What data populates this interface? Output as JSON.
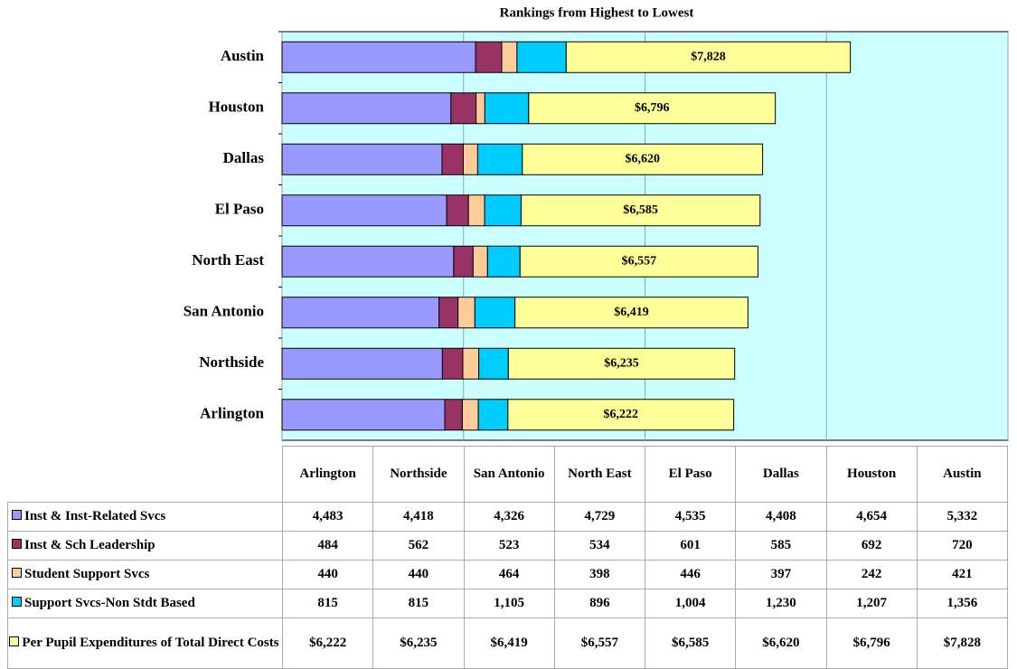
{
  "chart_data": {
    "type": "stacked_barh",
    "title": "Rankings from Highest to Lowest",
    "categories": [
      "Arlington",
      "Northside",
      "San Antonio",
      "North East",
      "El Paso",
      "Dallas",
      "Houston",
      "Austin"
    ],
    "series": [
      {
        "name": "Inst & Inst-Related Svcs",
        "color": "#9999ff",
        "values": [
          4483,
          4418,
          4326,
          4729,
          4535,
          4408,
          4654,
          5332
        ],
        "value_labels": [
          "4,483",
          "4,418",
          "4,326",
          "4,729",
          "4,535",
          "4,408",
          "4,654",
          "5,332"
        ]
      },
      {
        "name": "Inst & Sch Leadership",
        "color": "#993366",
        "values": [
          484,
          562,
          523,
          534,
          601,
          585,
          692,
          720
        ]
      },
      {
        "name": "Student Support Svcs",
        "color": "#ffcc99",
        "values": [
          440,
          440,
          464,
          398,
          446,
          397,
          242,
          421
        ]
      },
      {
        "name": "Support Svcs-Non Stdt Based",
        "color": "#00ccff",
        "values": [
          815,
          815,
          1105,
          896,
          1004,
          1230,
          1207,
          1356
        ],
        "value_labels": [
          "815",
          "815",
          "1,105",
          "896",
          "1,004",
          "1,230",
          "1,207",
          "1,356"
        ]
      },
      {
        "name": "Per Pupil Expenditures of Total Direct Costs",
        "color": "#ffff99",
        "values": [
          6222,
          6235,
          6419,
          6557,
          6585,
          6620,
          6796,
          7828
        ],
        "value_labels": [
          "$6,222",
          "$6,235",
          "$6,419",
          "$6,557",
          "$6,585",
          "$6,620",
          "$6,796",
          "$7,828"
        ]
      }
    ],
    "xlim": [
      0,
      20000
    ],
    "xticks": [
      0,
      5000,
      10000,
      15000,
      20000
    ],
    "grid": true,
    "plot_background": "#ccffff"
  }
}
